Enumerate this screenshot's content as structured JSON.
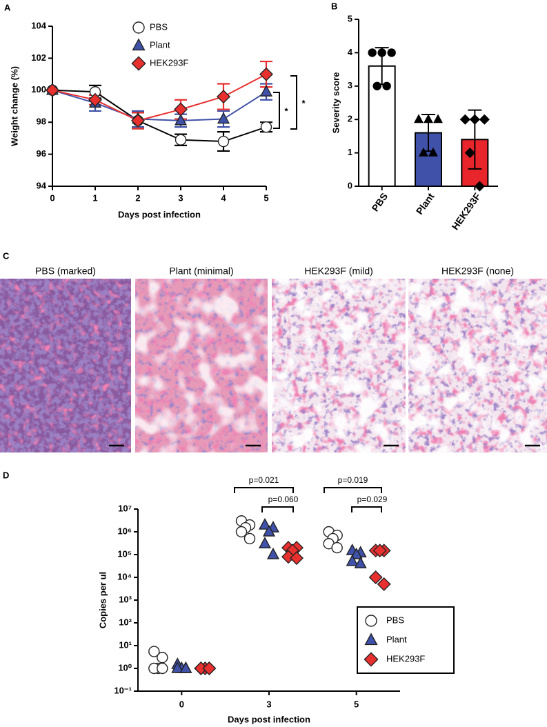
{
  "chart_data": [
    {
      "type": "line",
      "label": "A",
      "ylabel": "Weight change (%)",
      "xlabel": "Days post infection",
      "x": [
        0,
        1,
        2,
        3,
        4,
        5
      ],
      "xlim": [
        0,
        5
      ],
      "xticks": [
        0,
        1,
        2,
        3,
        4,
        5
      ],
      "ylim": [
        94,
        104
      ],
      "yticks": [
        94,
        96,
        98,
        100,
        102,
        104
      ],
      "legend": "upper center",
      "series": [
        {
          "name": "PBS",
          "color": "#ffffff",
          "line_color": "#000000",
          "marker": "circle",
          "values": [
            100,
            99.9,
            98.1,
            96.9,
            96.8,
            97.7
          ],
          "errors": [
            0,
            0.4,
            0.5,
            0.35,
            0.6,
            0.3
          ]
        },
        {
          "name": "Plant",
          "color": "#3f51a8",
          "line_color": "#3f51a8",
          "marker": "triangle",
          "values": [
            100,
            99.2,
            98.2,
            98.1,
            98.2,
            99.9
          ],
          "errors": [
            0,
            0.5,
            0.5,
            0.4,
            0.5,
            0.5
          ]
        },
        {
          "name": "HEK293F",
          "color": "#e8302f",
          "line_color": "#e8302f",
          "marker": "diamond",
          "values": [
            100,
            99.4,
            98.1,
            98.8,
            99.6,
            101.0
          ],
          "errors": [
            0,
            0.3,
            0.5,
            0.6,
            0.8,
            0.8
          ]
        }
      ],
      "annotations": [
        "*",
        "*"
      ]
    },
    {
      "type": "bar",
      "label": "B",
      "ylabel": "Severity score",
      "categories": [
        "PBS",
        "Plant",
        "HEK293F"
      ],
      "values": [
        3.6,
        1.6,
        1.4
      ],
      "errors": [
        0.55,
        0.55,
        0.88
      ],
      "colors": [
        "#ffffff",
        "#3f51a8",
        "#e8252b"
      ],
      "markers": [
        "circle",
        "triangle",
        "diamond"
      ],
      "points": [
        [
          4,
          4,
          4,
          3,
          3
        ],
        [
          2,
          2,
          2,
          1,
          1
        ],
        [
          2,
          2,
          2,
          1,
          0
        ]
      ],
      "ylim": [
        0,
        5
      ],
      "yticks": [
        0,
        1,
        2,
        3,
        4,
        5
      ]
    },
    {
      "type": "scatter",
      "label": "D",
      "ylabel": "Copies per ul",
      "xlabel": "Days post infection",
      "categories": [
        "0",
        "3",
        "5"
      ],
      "log_y": true,
      "ylim": [
        0.1,
        10000000
      ],
      "yticks": [
        {
          "value": 0.1,
          "label": "10⁻¹"
        },
        {
          "value": 1,
          "label": "10⁰"
        },
        {
          "value": 10,
          "label": "10¹"
        },
        {
          "value": 100,
          "label": "10²"
        },
        {
          "value": 1000,
          "label": "10³"
        },
        {
          "value": 10000,
          "label": "10⁴"
        },
        {
          "value": 100000,
          "label": "10⁵"
        },
        {
          "value": 1000000,
          "label": "10⁶"
        },
        {
          "value": 10000000,
          "label": "10⁷"
        }
      ],
      "legend": "lower right",
      "series": [
        {
          "name": "PBS",
          "color": "#ffffff",
          "marker": "circle",
          "values": [
            [
              5.5,
              3,
              1,
              1,
              1
            ],
            [
              3000000,
              2000000,
              1500000,
              1000000,
              500000
            ],
            [
              1000000,
              700000,
              500000,
              300000,
              200000
            ]
          ]
        },
        {
          "name": "Plant",
          "color": "#3f51a8",
          "marker": "triangle",
          "values": [
            [
              1.5,
              1,
              1,
              1,
              1
            ],
            [
              2000000,
              1500000,
              1000000,
              300000,
              100000
            ],
            [
              150000,
              120000,
              100000,
              50000,
              40000
            ]
          ]
        },
        {
          "name": "HEK293F",
          "color": "#e8302f",
          "marker": "diamond",
          "values": [
            [
              1,
              1,
              1,
              1,
              1
            ],
            [
              200000,
              200000,
              150000,
              80000,
              70000
            ],
            [
              150000,
              150000,
              150000,
              10000,
              5000
            ]
          ]
        }
      ],
      "annotations": [
        "p=0.021",
        "p=0.060",
        "p=0.019",
        "p=0.029"
      ]
    }
  ],
  "histology": {
    "label": "C",
    "captions": [
      "PBS (marked)",
      "Plant (minimal)",
      "HEK293F (mild)",
      "HEK293F (none)"
    ]
  }
}
